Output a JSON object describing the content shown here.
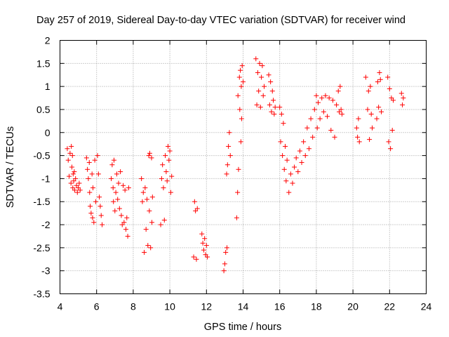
{
  "chart_data": {
    "type": "scatter",
    "title": "Day 257 of 2019, Sidereal Day-to-day VTEC variation (SDTVAR) for receiver wind",
    "xlabel": "GPS time / hours",
    "ylabel": "SDTVAR / TECUs",
    "xlim": [
      4,
      24
    ],
    "ylim": [
      -3.5,
      2
    ],
    "x_ticks": [
      "4",
      "6",
      "8",
      "10",
      "12",
      "14",
      "16",
      "18",
      "20",
      "22",
      "24"
    ],
    "y_ticks": [
      "2",
      "1.5",
      "1",
      "0.5",
      "0",
      "-0.5",
      "-1",
      "-1.5",
      "-2",
      "-2.5",
      "-3",
      "-3.5"
    ],
    "grid": true,
    "marker": "+",
    "marker_color": "#ff0000",
    "series": [
      {
        "points": [
          [
            4.4,
            -0.35
          ],
          [
            4.45,
            -0.6
          ],
          [
            4.5,
            -0.95
          ],
          [
            4.55,
            -0.45
          ],
          [
            4.6,
            -1.1
          ],
          [
            4.62,
            -0.3
          ],
          [
            4.65,
            -0.75
          ],
          [
            4.68,
            -0.5
          ],
          [
            4.7,
            -1.2
          ],
          [
            4.72,
            -0.9
          ],
          [
            4.75,
            -1.05
          ],
          [
            4.78,
            -0.85
          ],
          [
            4.8,
            -1.25
          ],
          [
            4.85,
            -1.0
          ],
          [
            4.9,
            -1.15
          ],
          [
            4.95,
            -1.3
          ],
          [
            5.0,
            -1.2
          ],
          [
            5.05,
            -1.1
          ],
          [
            5.1,
            -1.25
          ],
          [
            5.45,
            -0.55
          ],
          [
            5.5,
            -0.8
          ],
          [
            5.55,
            -1.0
          ],
          [
            5.6,
            -0.65
          ],
          [
            5.62,
            -1.3
          ],
          [
            5.65,
            -1.6
          ],
          [
            5.7,
            -1.75
          ],
          [
            5.75,
            -0.9
          ],
          [
            5.78,
            -1.85
          ],
          [
            5.8,
            -1.2
          ],
          [
            5.85,
            -1.95
          ],
          [
            5.9,
            -0.6
          ],
          [
            5.95,
            -1.5
          ],
          [
            6.05,
            -0.5
          ],
          [
            6.1,
            -0.9
          ],
          [
            6.15,
            -1.4
          ],
          [
            6.2,
            -1.6
          ],
          [
            6.25,
            -1.8
          ],
          [
            6.3,
            -2.0
          ],
          [
            6.8,
            -1.0
          ],
          [
            6.85,
            -0.7
          ],
          [
            6.9,
            -1.2
          ],
          [
            6.92,
            -1.5
          ],
          [
            6.95,
            -0.6
          ],
          [
            7.0,
            -1.7
          ],
          [
            7.05,
            -1.3
          ],
          [
            7.1,
            -0.9
          ],
          [
            7.15,
            -1.45
          ],
          [
            7.2,
            -1.1
          ],
          [
            7.25,
            -1.65
          ],
          [
            7.3,
            -0.85
          ],
          [
            7.35,
            -1.8
          ],
          [
            7.4,
            -2.0
          ],
          [
            7.45,
            -1.15
          ],
          [
            7.5,
            -1.95
          ],
          [
            7.55,
            -1.25
          ],
          [
            7.6,
            -2.1
          ],
          [
            7.65,
            -1.85
          ],
          [
            7.7,
            -2.25
          ],
          [
            7.75,
            -1.2
          ],
          [
            8.45,
            -1.0
          ],
          [
            8.5,
            -1.5
          ],
          [
            8.55,
            -1.3
          ],
          [
            8.6,
            -2.6
          ],
          [
            8.65,
            -1.2
          ],
          [
            8.7,
            -2.1
          ],
          [
            8.75,
            -1.45
          ],
          [
            8.8,
            -2.45
          ],
          [
            8.85,
            -0.5
          ],
          [
            8.88,
            -1.7
          ],
          [
            8.9,
            -0.45
          ],
          [
            8.95,
            -2.5
          ],
          [
            9.0,
            -0.55
          ],
          [
            9.02,
            -1.95
          ],
          [
            9.05,
            -1.4
          ],
          [
            9.5,
            -2.0
          ],
          [
            9.55,
            -1.0
          ],
          [
            9.6,
            -0.7
          ],
          [
            9.65,
            -1.2
          ],
          [
            9.7,
            -1.9
          ],
          [
            9.75,
            -0.5
          ],
          [
            9.8,
            -0.85
          ],
          [
            9.85,
            -1.05
          ],
          [
            9.9,
            -0.3
          ],
          [
            9.95,
            -0.6
          ],
          [
            10.0,
            -0.4
          ],
          [
            10.05,
            -1.3
          ],
          [
            10.1,
            -0.95
          ],
          [
            11.3,
            -2.7
          ],
          [
            11.35,
            -1.5
          ],
          [
            11.4,
            -1.7
          ],
          [
            11.45,
            -2.75
          ],
          [
            11.5,
            -1.65
          ],
          [
            11.75,
            -2.2
          ],
          [
            11.8,
            -2.4
          ],
          [
            11.85,
            -2.55
          ],
          [
            11.9,
            -2.3
          ],
          [
            11.95,
            -2.65
          ],
          [
            12.0,
            -2.45
          ],
          [
            12.05,
            -2.7
          ],
          [
            12.95,
            -3.0
          ],
          [
            13.0,
            -2.85
          ],
          [
            13.05,
            -2.6
          ],
          [
            13.1,
            -0.9
          ],
          [
            13.12,
            -2.5
          ],
          [
            13.15,
            -0.7
          ],
          [
            13.2,
            -0.3
          ],
          [
            13.25,
            0.0
          ],
          [
            13.3,
            -0.5
          ],
          [
            13.65,
            -1.85
          ],
          [
            13.7,
            -1.3
          ],
          [
            13.72,
            0.8
          ],
          [
            13.75,
            -0.8
          ],
          [
            13.8,
            1.2
          ],
          [
            13.82,
            0.5
          ],
          [
            13.85,
            1.35
          ],
          [
            13.88,
            -0.2
          ],
          [
            13.9,
            1.0
          ],
          [
            13.92,
            0.3
          ],
          [
            13.95,
            1.45
          ],
          [
            14.0,
            1.1
          ],
          [
            14.7,
            1.6
          ],
          [
            14.75,
            0.6
          ],
          [
            14.8,
            1.3
          ],
          [
            14.85,
            0.9
          ],
          [
            14.9,
            1.5
          ],
          [
            14.95,
            0.55
          ],
          [
            15.0,
            1.2
          ],
          [
            15.05,
            1.45
          ],
          [
            15.1,
            0.8
          ],
          [
            15.15,
            1.0
          ],
          [
            15.4,
            1.25
          ],
          [
            15.45,
            0.6
          ],
          [
            15.5,
            1.1
          ],
          [
            15.55,
            0.45
          ],
          [
            15.6,
            0.9
          ],
          [
            15.65,
            0.7
          ],
          [
            15.7,
            0.4
          ],
          [
            15.75,
            0.55
          ],
          [
            16.0,
            0.55
          ],
          [
            16.05,
            -0.2
          ],
          [
            16.1,
            0.4
          ],
          [
            16.15,
            -0.5
          ],
          [
            16.2,
            0.2
          ],
          [
            16.25,
            -0.8
          ],
          [
            16.3,
            -0.3
          ],
          [
            16.35,
            -1.05
          ],
          [
            16.4,
            -0.6
          ],
          [
            16.5,
            -1.3
          ],
          [
            16.6,
            -0.9
          ],
          [
            16.7,
            -1.1
          ],
          [
            16.8,
            -0.75
          ],
          [
            16.9,
            -0.55
          ],
          [
            17.0,
            -0.85
          ],
          [
            17.1,
            -0.4
          ],
          [
            17.2,
            -0.65
          ],
          [
            17.3,
            -0.2
          ],
          [
            17.4,
            -0.5
          ],
          [
            17.5,
            0.1
          ],
          [
            17.6,
            -0.35
          ],
          [
            17.7,
            0.3
          ],
          [
            17.8,
            -0.1
          ],
          [
            17.9,
            0.5
          ],
          [
            18.0,
            0.8
          ],
          [
            18.05,
            0.1
          ],
          [
            18.1,
            0.65
          ],
          [
            18.2,
            0.3
          ],
          [
            18.3,
            0.75
          ],
          [
            18.4,
            0.45
          ],
          [
            18.5,
            0.8
          ],
          [
            18.6,
            0.35
          ],
          [
            18.7,
            0.75
          ],
          [
            18.8,
            0.05
          ],
          [
            18.9,
            0.7
          ],
          [
            19.0,
            -0.1
          ],
          [
            19.1,
            0.6
          ],
          [
            19.2,
            0.9
          ],
          [
            19.25,
            0.45
          ],
          [
            19.3,
            1.0
          ],
          [
            19.35,
            0.5
          ],
          [
            19.4,
            0.4
          ],
          [
            20.2,
            0.1
          ],
          [
            20.25,
            -0.1
          ],
          [
            20.3,
            0.3
          ],
          [
            20.35,
            -0.2
          ],
          [
            20.7,
            1.2
          ],
          [
            20.8,
            0.5
          ],
          [
            20.85,
            0.9
          ],
          [
            20.9,
            -0.15
          ],
          [
            20.95,
            1.0
          ],
          [
            21.0,
            0.4
          ],
          [
            21.05,
            0.1
          ],
          [
            21.3,
            0.3
          ],
          [
            21.35,
            1.1
          ],
          [
            21.4,
            0.55
          ],
          [
            21.45,
            1.3
          ],
          [
            21.5,
            1.15
          ],
          [
            21.55,
            0.45
          ],
          [
            21.9,
            1.2
          ],
          [
            21.95,
            -0.2
          ],
          [
            22.0,
            0.95
          ],
          [
            22.05,
            -0.35
          ],
          [
            22.1,
            0.75
          ],
          [
            22.15,
            0.05
          ],
          [
            22.2,
            0.7
          ],
          [
            22.65,
            0.85
          ],
          [
            22.7,
            0.6
          ],
          [
            22.75,
            0.75
          ]
        ]
      }
    ]
  }
}
